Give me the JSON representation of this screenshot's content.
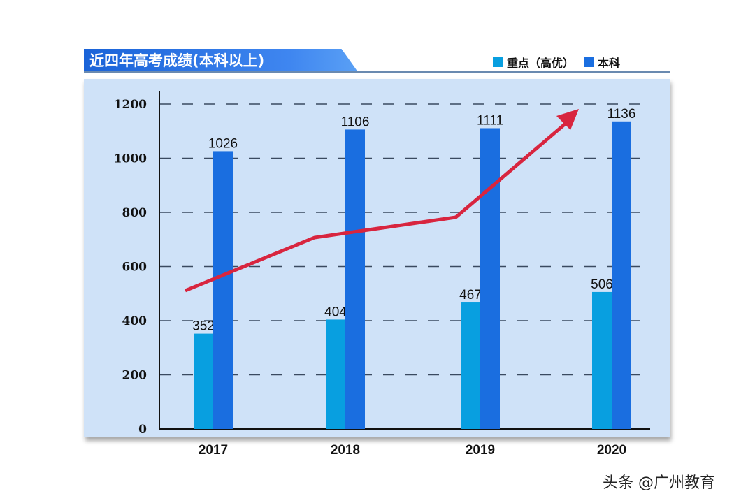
{
  "chart_data": {
    "type": "bar",
    "title": "近四年高考成绩(本科以上)",
    "categories": [
      "2017",
      "2018",
      "2019",
      "2020"
    ],
    "series": [
      {
        "name": "重点（高优）",
        "values": [
          352,
          404,
          467,
          506
        ],
        "color": "#089fe0"
      },
      {
        "name": "本科",
        "values": [
          1026,
          1106,
          1111,
          1136
        ],
        "color": "#1a6ee0"
      }
    ],
    "ylim": [
      0,
      1200
    ],
    "yticks": [
      "0",
      "200",
      "400",
      "600",
      "800",
      "1000",
      "1200"
    ],
    "grid": "dashed horizontal",
    "legend": "top-right",
    "trend_arrow_color": "#d8253f"
  },
  "watermark": "头条 @广州教育"
}
